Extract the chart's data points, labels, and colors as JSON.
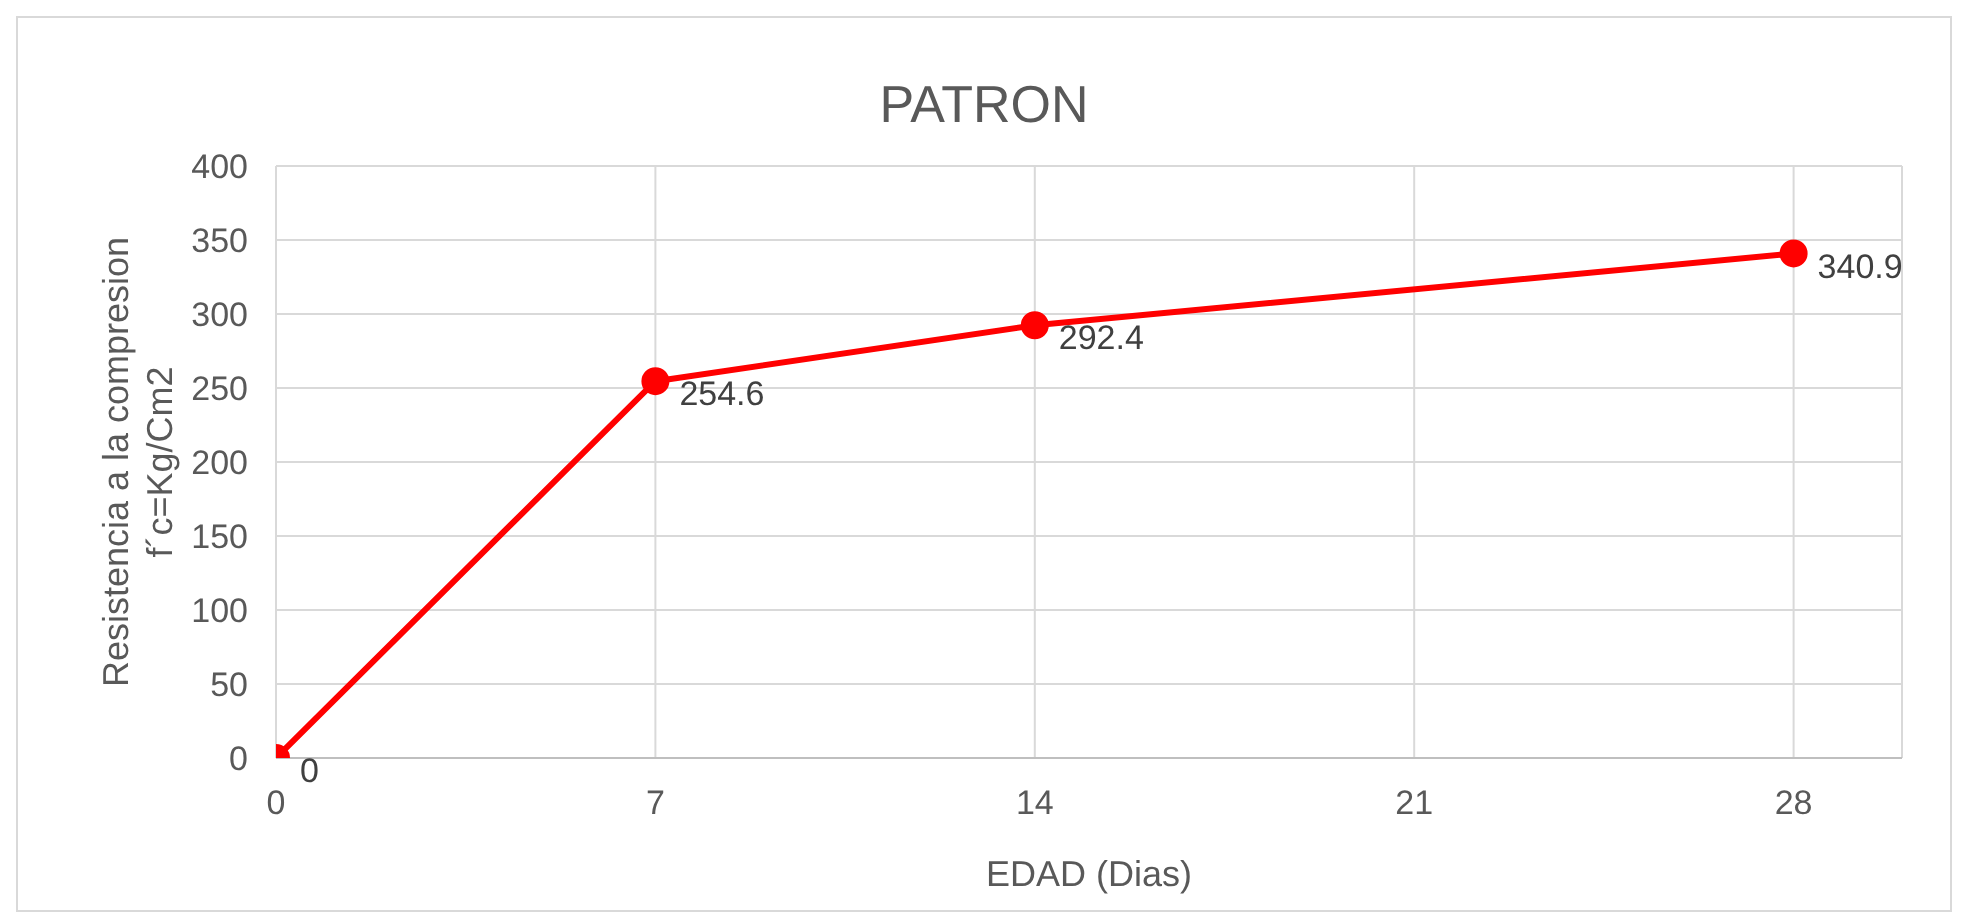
{
  "chart_data": {
    "type": "line",
    "title": "PATRON",
    "xlabel": "EDAD (Dias)",
    "ylabel": "Resistencia a la compresion\nf´c=Kg/Cm2",
    "x": [
      0,
      7,
      14,
      28
    ],
    "series": [
      {
        "color": "#ff0000",
        "values": [
          0,
          254.6,
          292.4,
          340.9
        ]
      }
    ],
    "xlim": [
      0,
      30
    ],
    "xticks": [
      0,
      7,
      14,
      21,
      28
    ],
    "ylim": [
      0,
      400
    ],
    "yticks": [
      0,
      50,
      100,
      150,
      200,
      250,
      300,
      350,
      400
    ],
    "grid": true,
    "marker": "circle",
    "line_style": "solid",
    "data_labels": true,
    "legend": false
  }
}
